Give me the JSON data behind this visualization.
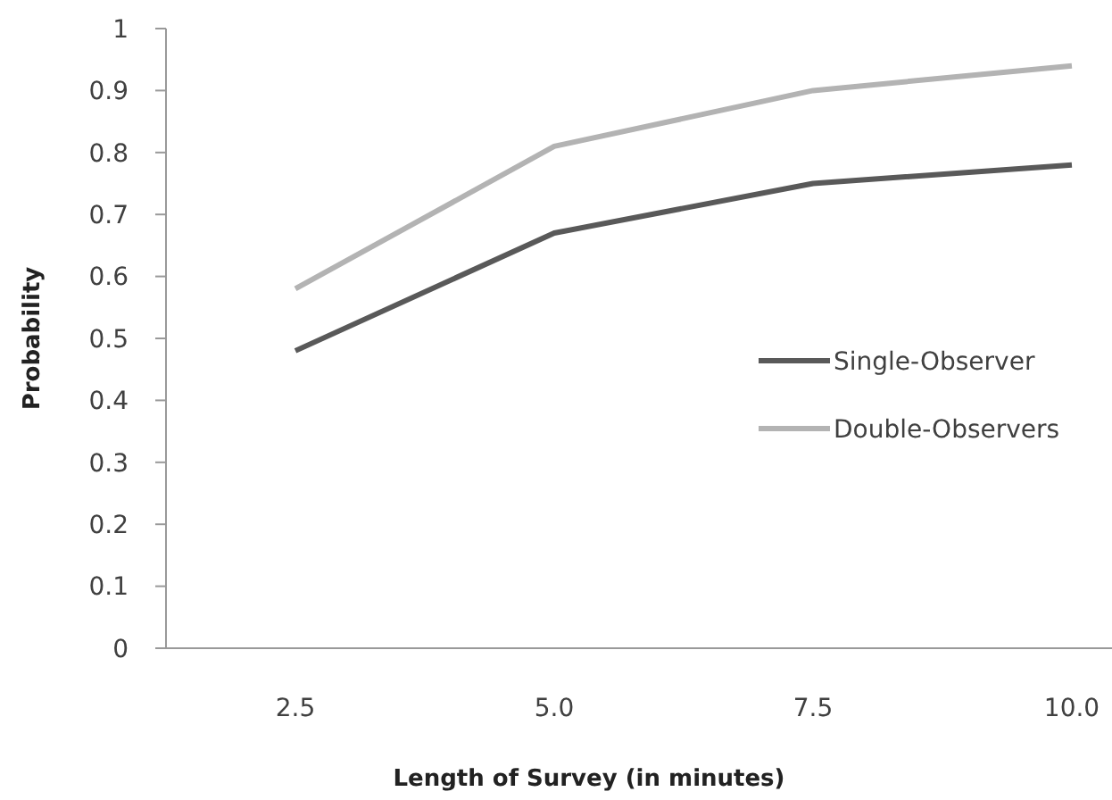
{
  "chart_data": {
    "type": "line",
    "xlabel": "Length of Survey (in minutes)",
    "ylabel": "Probability",
    "categories": [
      "2.5",
      "5.0",
      "7.5",
      "10.0"
    ],
    "series": [
      {
        "name": "Single-Observer",
        "color": "#595959",
        "values": [
          0.48,
          0.67,
          0.75,
          0.78
        ]
      },
      {
        "name": "Double-Observers",
        "color": "#b3b3b3",
        "values": [
          0.58,
          0.81,
          0.9,
          0.94
        ]
      }
    ],
    "ylim": [
      0,
      1
    ],
    "yticks": [
      0,
      0.1,
      0.2,
      0.3,
      0.4,
      0.5,
      0.6,
      0.7,
      0.8,
      0.9,
      1
    ],
    "grid": false,
    "legend": "right",
    "marker": "none",
    "line_style": "solid"
  }
}
